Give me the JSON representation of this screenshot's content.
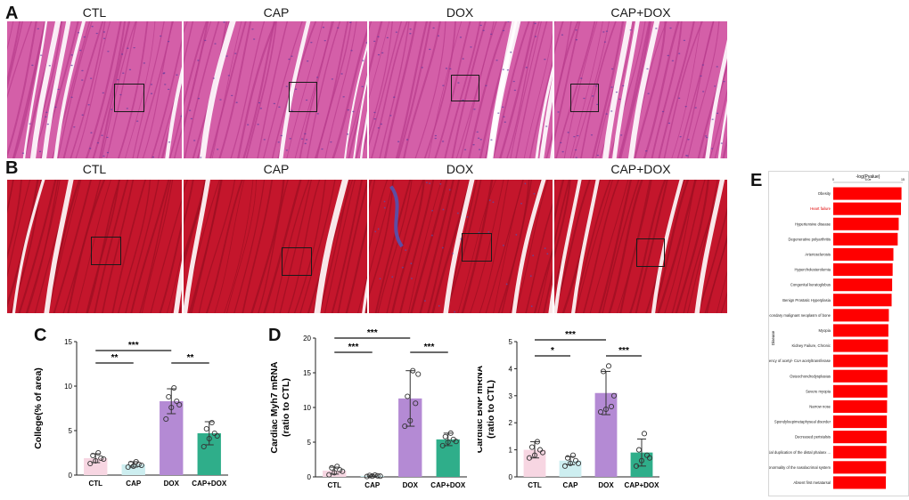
{
  "panels": {
    "a": "A",
    "b": "B",
    "c": "C",
    "d": "D",
    "e": "E"
  },
  "he_labels": [
    "CTL",
    "CAP",
    "DOX",
    "CAP+DOX"
  ],
  "masson_labels": [
    "CTL",
    "CAP",
    "DOX",
    "CAP+DOX"
  ],
  "colors": {
    "he_base": "#d45fa8",
    "he_stripe": "#b93d8d",
    "he_nuclei": "#5b3a9e",
    "masson_base": "#c4162c",
    "masson_stripe": "#9e0f22",
    "masson_collagen": "#4b57b8",
    "ctl": "#f7d6e2",
    "cap": "#cdeef0",
    "dox": "#b48ad4",
    "capdox": "#2fae8a",
    "e_bar": "#ff0000"
  },
  "chart_data": [
    {
      "type": "bar",
      "panel": "C",
      "categories": [
        "CTL",
        "CAP",
        "DOX",
        "CAP+DOX"
      ],
      "values": [
        1.9,
        1.2,
        8.3,
        4.7
      ],
      "errors": [
        0.5,
        0.3,
        1.4,
        1.3
      ],
      "points": [
        [
          1.3,
          1.6,
          1.9,
          2.2,
          2.5,
          1.8
        ],
        [
          0.9,
          1.0,
          1.2,
          1.3,
          1.5,
          1.1
        ],
        [
          6.3,
          7.6,
          8.3,
          8.8,
          9.8,
          7.9
        ],
        [
          3.2,
          4.1,
          4.7,
          5.2,
          5.9,
          4.4
        ]
      ],
      "ylabel": "College(% of area)",
      "ylim": [
        0,
        15
      ],
      "yticks": [
        "0",
        "5",
        "10",
        "15"
      ],
      "significance": [
        {
          "from": 0,
          "to": 1,
          "label": "**"
        },
        {
          "from": 0,
          "to": 2,
          "label": "***"
        },
        {
          "from": 2,
          "to": 3,
          "label": "**"
        }
      ]
    },
    {
      "type": "bar",
      "panel": "D",
      "categories": [
        "CTL",
        "CAP",
        "DOX",
        "CAP+DOX"
      ],
      "values": [
        0.9,
        0.15,
        11.3,
        5.4
      ],
      "errors": [
        0.5,
        0.1,
        4.0,
        0.9
      ],
      "points": [
        [
          0.3,
          0.6,
          1.0,
          1.3,
          1.5,
          0.8
        ],
        [
          0.05,
          0.1,
          0.15,
          0.2,
          0.25,
          0.1
        ],
        [
          7.3,
          8.1,
          10.6,
          11.6,
          15.3,
          14.8
        ],
        [
          4.5,
          5.0,
          5.4,
          5.8,
          6.3,
          5.1
        ]
      ],
      "ylabel": "Cardiac Myh7 mRNA\n(ratio to CTL)",
      "ylim": [
        0,
        20
      ],
      "yticks": [
        "0",
        "5",
        "10",
        "15",
        "20"
      ],
      "significance": [
        {
          "from": 0,
          "to": 1,
          "label": "***"
        },
        {
          "from": 0,
          "to": 2,
          "label": "***"
        },
        {
          "from": 2,
          "to": 3,
          "label": "***"
        }
      ]
    },
    {
      "type": "bar",
      "panel": "D",
      "categories": [
        "CTL",
        "CAP",
        "DOX",
        "CAP+DOX"
      ],
      "values": [
        1.0,
        0.6,
        3.1,
        0.9
      ],
      "errors": [
        0.3,
        0.15,
        0.8,
        0.5
      ],
      "points": [
        [
          0.7,
          0.8,
          1.0,
          1.1,
          1.3,
          0.9
        ],
        [
          0.4,
          0.5,
          0.6,
          0.7,
          0.8,
          0.5
        ],
        [
          2.4,
          2.5,
          2.6,
          3.9,
          4.1,
          3.0
        ],
        [
          0.4,
          0.6,
          0.8,
          1.0,
          1.6,
          0.7
        ]
      ],
      "ylabel": "Cardiac BNP mRNA\n(ratio to CTL)",
      "ylim": [
        0,
        5
      ],
      "yticks": [
        "0",
        "1",
        "2",
        "3",
        "4",
        "5"
      ],
      "significance": [
        {
          "from": 0,
          "to": 1,
          "label": "*"
        },
        {
          "from": 0,
          "to": 2,
          "label": "***"
        },
        {
          "from": 2,
          "to": 3,
          "label": "***"
        }
      ]
    },
    {
      "type": "bar",
      "panel": "E",
      "orientation": "horizontal",
      "title": "-log(Pvalue)",
      "ylabel": "Disease",
      "categories": [
        "Obesity",
        "Heart failure",
        "Hypertensive disease",
        "Degenerative polyarthritis",
        "Arteriosclerosis",
        "Hypercholesterolemia",
        "Congenital keratoglobus",
        "Benign Prostatic Hyperplasia",
        "Secondary malignant neoplasm of bone",
        "Myopia",
        "Kidney Failure, Chronic",
        "Deficiency of acetyl- CoA acetyltransferase",
        "Osteochondrodysplasias",
        "Severe myopia",
        "Narrow nose",
        "Spondyloepimetaphyseal disorder",
        "Decreased peristalsis",
        "Partial duplication of the distal phalanx ...",
        "Abnormality of the nasolacrimal system",
        "Absent first metatarsal"
      ],
      "values": [
        27,
        26.8,
        25.9,
        25.5,
        23.8,
        23.5,
        23.3,
        23.1,
        22.0,
        21.8,
        21.7,
        21.5,
        21.4,
        21.4,
        21.3,
        21.2,
        21.1,
        21.0,
        20.9,
        20.8
      ],
      "highlight": "Heart failure",
      "xlim": [
        0,
        27.5
      ],
      "xticks": [
        "0",
        "5.0e",
        "15"
      ]
    }
  ]
}
